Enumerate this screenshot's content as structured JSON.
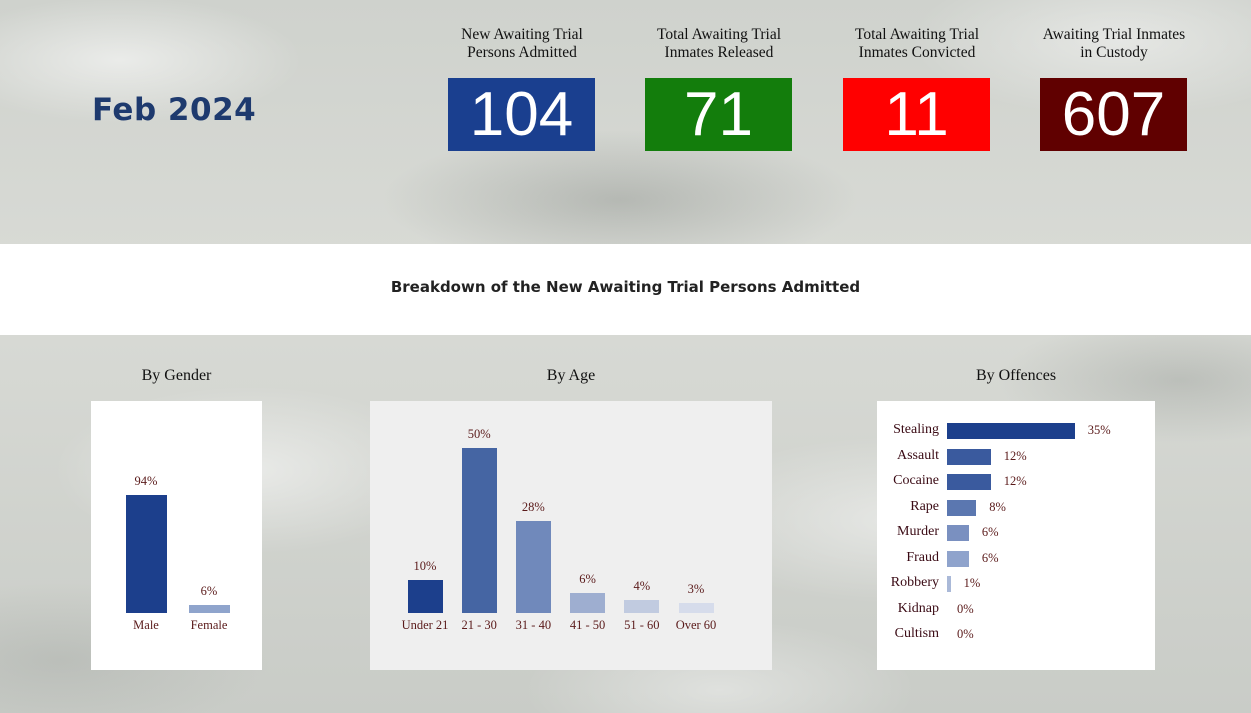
{
  "header": {
    "month": "Feb 2024",
    "kpis": [
      {
        "label_line1": "New Awaiting Trial",
        "label_line2": "Persons Admitted",
        "value": "104",
        "color": "#1a3f8f"
      },
      {
        "label_line1": "Total Awaiting Trial",
        "label_line2": "Inmates Released",
        "value": "71",
        "color": "#137d0c"
      },
      {
        "label_line1": "Total Awaiting Trial",
        "label_line2": "Inmates Convicted",
        "value": "11",
        "color": "#ff0000"
      },
      {
        "label_line1": "Awaiting Trial Inmates",
        "label_line2": "in Custody",
        "value": "607",
        "color": "#600000"
      }
    ]
  },
  "section": {
    "title": "Breakdown of the New Awaiting Trial Persons Admitted"
  },
  "panels": {
    "gender_title": "By Gender",
    "age_title": "By Age",
    "offences_title": "By Offences"
  },
  "chart_data": [
    {
      "type": "bar",
      "title": "By Gender",
      "categories": [
        "Male",
        "Female"
      ],
      "values": [
        94,
        6
      ],
      "labels": [
        "94%",
        "6%"
      ],
      "colors": [
        "#1c3f8c",
        "#8fa4cc"
      ]
    },
    {
      "type": "bar",
      "title": "By Age",
      "categories": [
        "Under 21",
        "21 - 30",
        "31 - 40",
        "41 - 50",
        "51 - 60",
        "Over 60"
      ],
      "values": [
        10,
        50,
        28,
        6,
        4,
        3
      ],
      "labels": [
        "10%",
        "50%",
        "28%",
        "6%",
        "4%",
        "3%"
      ],
      "colors": [
        "#1c3f8c",
        "#4565a3",
        "#7089bb",
        "#9eaed0",
        "#c1cbe0",
        "#d6dceb"
      ]
    },
    {
      "type": "bar",
      "orientation": "horizontal",
      "title": "By Offences",
      "categories": [
        "Stealing",
        "Assault",
        "Cocaine",
        "Rape",
        "Murder",
        "Fraud",
        "Robbery",
        "Kidnap",
        "Cultism"
      ],
      "values": [
        35,
        12,
        12,
        8,
        6,
        6,
        1,
        0,
        0
      ],
      "labels": [
        "35%",
        "12%",
        "12%",
        "8%",
        "6%",
        "6%",
        "1%",
        "0%",
        "0%"
      ],
      "colors": [
        "#1c3f8c",
        "#3a5a9e",
        "#3a5a9e",
        "#5b77b0",
        "#7a90c0",
        "#8fa3cc",
        "#aab9d8",
        "#c5d0e4",
        "#c5d0e4"
      ]
    }
  ]
}
